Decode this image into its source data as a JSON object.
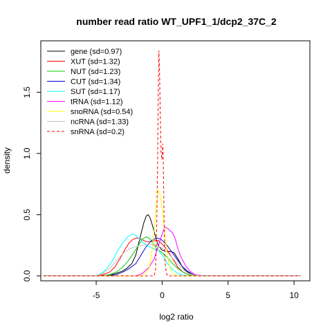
{
  "chart_data": {
    "type": "line",
    "title": "number read ratio WT_UPF1_1/dcp2_37C_2",
    "xlabel": "log2 ratio",
    "ylabel": "density",
    "xlim": [
      -9.2,
      11.2
    ],
    "ylim": [
      -0.04,
      1.92
    ],
    "x_ticks": [
      -5,
      0,
      5,
      10
    ],
    "y_ticks": [
      0.0,
      0.5,
      1.0,
      1.5
    ],
    "legend_position": "top-left",
    "x_support": [
      -9,
      10.5
    ],
    "series": [
      {
        "name": "gene (sd=0.97)",
        "color": "#000000",
        "dash": false,
        "points": [
          [
            -9,
            0
          ],
          [
            -5,
            0
          ],
          [
            -4,
            0.005
          ],
          [
            -3.5,
            0.02
          ],
          [
            -3,
            0.04
          ],
          [
            -2.7,
            0.06
          ],
          [
            -2.3,
            0.1
          ],
          [
            -2,
            0.17
          ],
          [
            -1.7,
            0.3
          ],
          [
            -1.4,
            0.43
          ],
          [
            -1.2,
            0.49
          ],
          [
            -1.05,
            0.5
          ],
          [
            -0.9,
            0.47
          ],
          [
            -0.7,
            0.4
          ],
          [
            -0.5,
            0.32
          ],
          [
            -0.3,
            0.25
          ],
          [
            0,
            0.21
          ],
          [
            0.3,
            0.2
          ],
          [
            0.6,
            0.2
          ],
          [
            0.9,
            0.19
          ],
          [
            1.2,
            0.14
          ],
          [
            1.5,
            0.08
          ],
          [
            1.8,
            0.04
          ],
          [
            2.2,
            0.015
          ],
          [
            2.7,
            0.005
          ],
          [
            3.2,
            0
          ],
          [
            10.5,
            0
          ]
        ]
      },
      {
        "name": "XUT (sd=1.32)",
        "color": "#ff0000",
        "dash": false,
        "points": [
          [
            -9,
            0
          ],
          [
            -5,
            0
          ],
          [
            -4.5,
            0.01
          ],
          [
            -4,
            0.03
          ],
          [
            -3.6,
            0.07
          ],
          [
            -3.2,
            0.14
          ],
          [
            -2.8,
            0.22
          ],
          [
            -2.5,
            0.27
          ],
          [
            -2.2,
            0.3
          ],
          [
            -1.9,
            0.31
          ],
          [
            -1.6,
            0.3
          ],
          [
            -1.2,
            0.28
          ],
          [
            -0.8,
            0.28
          ],
          [
            -0.5,
            0.29
          ],
          [
            -0.3,
            0.29
          ],
          [
            0,
            0.26
          ],
          [
            0.4,
            0.21
          ],
          [
            0.8,
            0.14
          ],
          [
            1.2,
            0.07
          ],
          [
            1.6,
            0.03
          ],
          [
            2,
            0.01
          ],
          [
            2.5,
            0
          ],
          [
            10.5,
            0
          ]
        ]
      },
      {
        "name": "NUT (sd=1.23)",
        "color": "#00cd00",
        "dash": false,
        "points": [
          [
            -9,
            0
          ],
          [
            -4.5,
            0
          ],
          [
            -4,
            0.01
          ],
          [
            -3.5,
            0.03
          ],
          [
            -3,
            0.07
          ],
          [
            -2.6,
            0.12
          ],
          [
            -2.2,
            0.18
          ],
          [
            -1.8,
            0.25
          ],
          [
            -1.5,
            0.3
          ],
          [
            -1.2,
            0.32
          ],
          [
            -0.9,
            0.3
          ],
          [
            -0.6,
            0.25
          ],
          [
            -0.3,
            0.21
          ],
          [
            0,
            0.19
          ],
          [
            0.4,
            0.15
          ],
          [
            0.8,
            0.1
          ],
          [
            1.2,
            0.06
          ],
          [
            1.6,
            0.03
          ],
          [
            2,
            0.01
          ],
          [
            2.6,
            0
          ],
          [
            10.5,
            0
          ]
        ]
      },
      {
        "name": "CUT (sd=1.34)",
        "color": "#0000cd",
        "dash": false,
        "points": [
          [
            -9,
            0
          ],
          [
            -4,
            0
          ],
          [
            -3.5,
            0.01
          ],
          [
            -3,
            0.03
          ],
          [
            -2.5,
            0.06
          ],
          [
            -2,
            0.1
          ],
          [
            -1.6,
            0.17
          ],
          [
            -1.2,
            0.24
          ],
          [
            -0.8,
            0.29
          ],
          [
            -0.4,
            0.31
          ],
          [
            -0.1,
            0.3
          ],
          [
            0.3,
            0.26
          ],
          [
            0.7,
            0.2
          ],
          [
            1.1,
            0.14
          ],
          [
            1.5,
            0.08
          ],
          [
            1.9,
            0.04
          ],
          [
            2.3,
            0.015
          ],
          [
            2.8,
            0
          ],
          [
            10.5,
            0
          ]
        ]
      },
      {
        "name": "SUT (sd=1.17)",
        "color": "#00ffff",
        "dash": false,
        "points": [
          [
            -9,
            0
          ],
          [
            -5,
            0
          ],
          [
            -4.6,
            0.02
          ],
          [
            -4.2,
            0.06
          ],
          [
            -3.8,
            0.12
          ],
          [
            -3.4,
            0.2
          ],
          [
            -3,
            0.27
          ],
          [
            -2.6,
            0.32
          ],
          [
            -2.3,
            0.34
          ],
          [
            -2.1,
            0.34
          ],
          [
            -1.8,
            0.31
          ],
          [
            -1.4,
            0.27
          ],
          [
            -1,
            0.24
          ],
          [
            -0.6,
            0.22
          ],
          [
            -0.3,
            0.21
          ],
          [
            0,
            0.17
          ],
          [
            0.4,
            0.1
          ],
          [
            0.8,
            0.05
          ],
          [
            1.2,
            0.02
          ],
          [
            1.6,
            0.005
          ],
          [
            2,
            0
          ],
          [
            10.5,
            0
          ]
        ]
      },
      {
        "name": "tRNA (sd=1.12)",
        "color": "#ff00ff",
        "dash": false,
        "points": [
          [
            -9,
            0
          ],
          [
            -2,
            0
          ],
          [
            -1.5,
            0.02
          ],
          [
            -1,
            0.07
          ],
          [
            -0.6,
            0.14
          ],
          [
            -0.3,
            0.24
          ],
          [
            0,
            0.34
          ],
          [
            0.2,
            0.4
          ],
          [
            0.4,
            0.39
          ],
          [
            0.6,
            0.37
          ],
          [
            0.8,
            0.35
          ],
          [
            1,
            0.3
          ],
          [
            1.2,
            0.22
          ],
          [
            1.4,
            0.16
          ],
          [
            1.6,
            0.12
          ],
          [
            1.8,
            0.08
          ],
          [
            2.1,
            0.04
          ],
          [
            2.5,
            0.01
          ],
          [
            3,
            0
          ],
          [
            10.5,
            0
          ]
        ]
      },
      {
        "name": "snoRNA (sd=0.54)",
        "color": "#ffff00",
        "dash": false,
        "points": [
          [
            -9,
            0
          ],
          [
            -1.6,
            0
          ],
          [
            -1.3,
            0.02
          ],
          [
            -1,
            0.06
          ],
          [
            -0.8,
            0.18
          ],
          [
            -0.6,
            0.38
          ],
          [
            -0.45,
            0.58
          ],
          [
            -0.3,
            0.7
          ],
          [
            -0.15,
            0.67
          ],
          [
            0,
            0.55
          ],
          [
            0.2,
            0.35
          ],
          [
            0.4,
            0.17
          ],
          [
            0.6,
            0.06
          ],
          [
            0.8,
            0.02
          ],
          [
            1.1,
            0
          ],
          [
            10.5,
            0
          ]
        ]
      },
      {
        "name": "ncRNA (sd=1.33)",
        "color": "#bebebe",
        "dash": false,
        "points": [
          [
            -9,
            0
          ],
          [
            -5,
            0
          ],
          [
            -4.5,
            0.02
          ],
          [
            -4,
            0.06
          ],
          [
            -3.5,
            0.12
          ],
          [
            -3,
            0.18
          ],
          [
            -2.5,
            0.22
          ],
          [
            -2,
            0.24
          ],
          [
            -1.5,
            0.25
          ],
          [
            -1,
            0.26
          ],
          [
            -0.5,
            0.25
          ],
          [
            0,
            0.23
          ],
          [
            0.5,
            0.18
          ],
          [
            1,
            0.12
          ],
          [
            1.5,
            0.06
          ],
          [
            2,
            0.02
          ],
          [
            2.5,
            0.005
          ],
          [
            3,
            0
          ],
          [
            10.5,
            0
          ]
        ]
      },
      {
        "name": "snRNA (sd=0.2)",
        "color": "#ff0000",
        "dash": true,
        "points": [
          [
            -9,
            0
          ],
          [
            -0.6,
            0
          ],
          [
            -0.5,
            0.05
          ],
          [
            -0.42,
            0.35
          ],
          [
            -0.35,
            0.9
          ],
          [
            -0.3,
            1.45
          ],
          [
            -0.25,
            1.84
          ],
          [
            -0.2,
            1.7
          ],
          [
            -0.15,
            1.35
          ],
          [
            -0.08,
            1.0
          ],
          [
            -0.02,
            0.95
          ],
          [
            0.05,
            1.08
          ],
          [
            0.1,
            0.85
          ],
          [
            0.15,
            0.45
          ],
          [
            0.2,
            0.15
          ],
          [
            0.3,
            0.03
          ],
          [
            0.4,
            0
          ],
          [
            10.5,
            0
          ]
        ]
      }
    ]
  }
}
